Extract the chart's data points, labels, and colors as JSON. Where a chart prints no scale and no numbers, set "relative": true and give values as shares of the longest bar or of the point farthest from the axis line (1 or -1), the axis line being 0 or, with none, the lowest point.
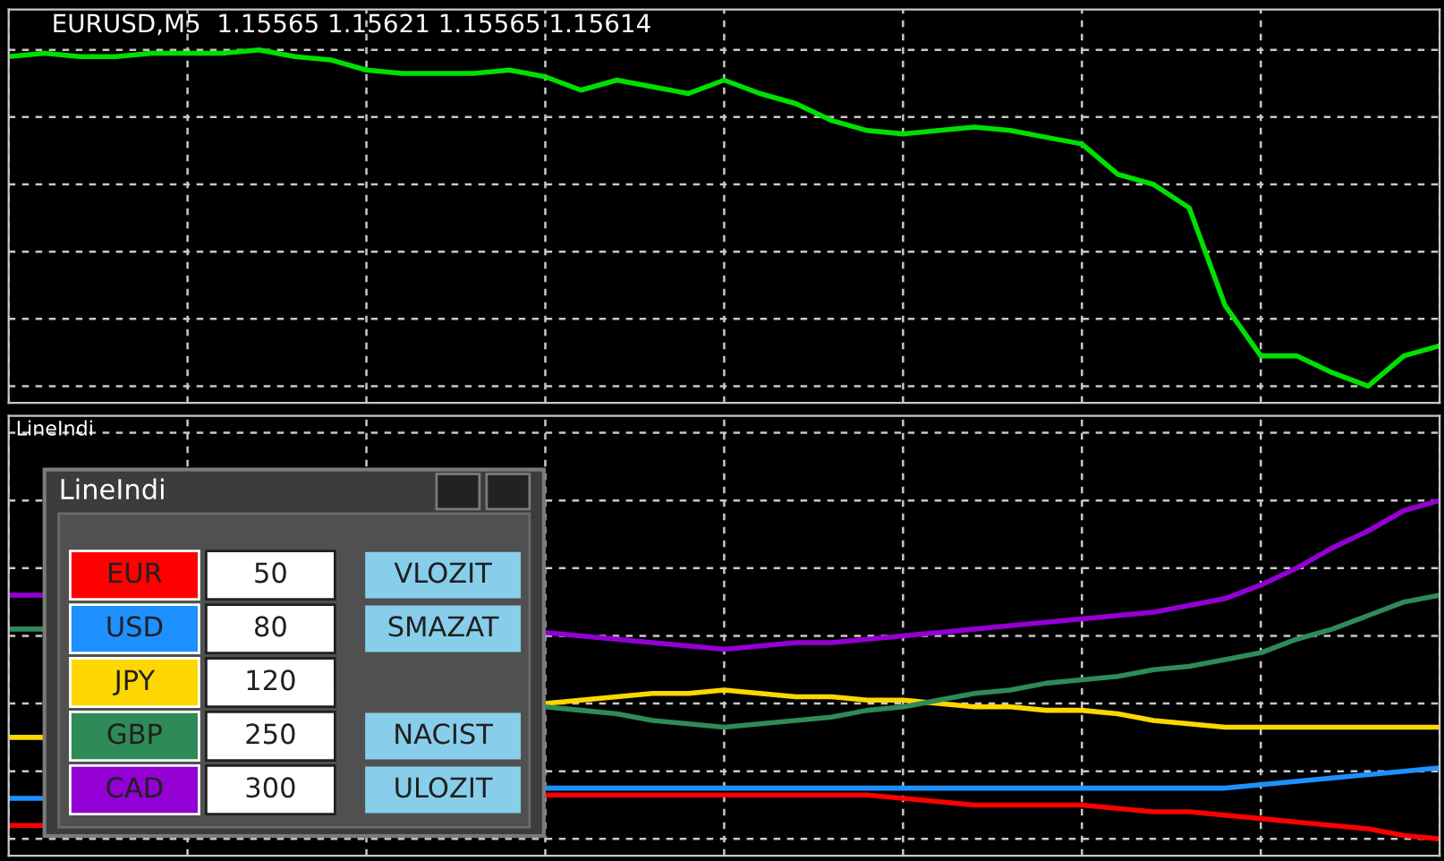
{
  "chart_data": [
    {
      "type": "line",
      "title": "EURUSD,M5  1.15565 1.15621 1.15565 1.15614",
      "relative": true,
      "grid": true,
      "tick_labels": false,
      "categories": [
        null,
        null,
        null,
        null,
        null,
        null,
        null,
        null,
        null,
        null,
        null,
        null,
        null,
        null,
        null,
        null,
        null,
        null,
        null,
        null,
        null,
        null,
        null,
        null,
        null,
        null,
        null,
        null,
        null,
        null,
        null,
        null,
        null,
        null,
        null,
        null,
        null,
        null,
        null,
        null,
        null
      ],
      "series": [
        {
          "color": "#00e000",
          "values": [
            0.98,
            0.99,
            0.98,
            0.98,
            0.99,
            0.99,
            0.99,
            1,
            0.98,
            0.97,
            0.94,
            0.93,
            0.93,
            0.93,
            0.94,
            0.92,
            0.88,
            0.91,
            0.89,
            0.87,
            0.91,
            0.87,
            0.84,
            0.79,
            0.76,
            0.75,
            0.76,
            0.77,
            0.76,
            0.74,
            0.72,
            0.63,
            0.6,
            0.53,
            0.24,
            0.09,
            0.09,
            0.04,
            0,
            0.09,
            0.12
          ]
        }
      ]
    },
    {
      "type": "line",
      "title": "LineIndi",
      "legend_title": "LineIndi",
      "legend": "left",
      "relative": true,
      "grid": true,
      "tick_labels": false,
      "categories": [
        null,
        null,
        null,
        null,
        null,
        null,
        null,
        null,
        null,
        null,
        null,
        null,
        null,
        null,
        null,
        null,
        null,
        null,
        null,
        null,
        null,
        null,
        null,
        null,
        null,
        null,
        null,
        null,
        null,
        null,
        null,
        null,
        null,
        null,
        null,
        null,
        null,
        null,
        null,
        null,
        null
      ],
      "series": [
        {
          "name": "EUR",
          "color": "#ff0000",
          "values": [
            0.04,
            0.04,
            null,
            null,
            null,
            null,
            null,
            null,
            null,
            null,
            null,
            null,
            null,
            null,
            null,
            0.13,
            0.13,
            0.13,
            0.13,
            0.13,
            0.13,
            0.13,
            0.13,
            0.13,
            0.13,
            0.12,
            0.11,
            0.1,
            0.1,
            0.1,
            0.1,
            0.09,
            0.08,
            0.08,
            0.07,
            0.06,
            0.05,
            0.04,
            0.03,
            0.01,
            0
          ]
        },
        {
          "name": "USD",
          "color": "#1e90ff",
          "values": [
            0.12,
            0.12,
            null,
            null,
            null,
            null,
            null,
            null,
            null,
            null,
            null,
            null,
            null,
            null,
            null,
            0.15,
            0.15,
            0.15,
            0.15,
            0.15,
            0.15,
            0.15,
            0.15,
            0.15,
            0.15,
            0.15,
            0.15,
            0.15,
            0.15,
            0.15,
            0.15,
            0.15,
            0.15,
            0.15,
            0.15,
            0.16,
            0.17,
            0.18,
            0.19,
            0.2,
            0.21
          ]
        },
        {
          "name": "JPY",
          "color": "#ffd700",
          "values": [
            0.3,
            0.3,
            null,
            null,
            null,
            null,
            null,
            null,
            null,
            null,
            null,
            null,
            null,
            null,
            null,
            0.4,
            0.41,
            0.42,
            0.43,
            0.43,
            0.44,
            0.43,
            0.42,
            0.42,
            0.41,
            0.41,
            0.4,
            0.39,
            0.39,
            0.38,
            0.38,
            0.37,
            0.35,
            0.34,
            0.33,
            0.33,
            0.33,
            0.33,
            0.33,
            0.33,
            0.33
          ]
        },
        {
          "name": "GBP",
          "color": "#2e8b57",
          "values": [
            0.62,
            0.62,
            null,
            null,
            null,
            null,
            null,
            null,
            null,
            null,
            null,
            null,
            null,
            null,
            null,
            0.39,
            0.38,
            0.37,
            0.35,
            0.34,
            0.33,
            0.34,
            0.35,
            0.36,
            0.38,
            0.39,
            0.41,
            0.43,
            0.44,
            0.46,
            0.47,
            0.48,
            0.5,
            0.51,
            0.53,
            0.55,
            0.59,
            0.62,
            0.66,
            0.7,
            0.72
          ]
        },
        {
          "name": "CAD",
          "color": "#9400d3",
          "values": [
            0.72,
            0.72,
            null,
            null,
            null,
            null,
            null,
            null,
            null,
            null,
            null,
            null,
            null,
            null,
            null,
            0.61,
            0.6,
            0.59,
            0.58,
            0.57,
            0.56,
            0.57,
            0.58,
            0.58,
            0.59,
            0.6,
            0.61,
            0.62,
            0.63,
            0.64,
            0.65,
            0.66,
            0.67,
            0.69,
            0.71,
            0.75,
            0.8,
            0.86,
            0.91,
            0.97,
            1
          ]
        }
      ],
      "annotations": [
        "50",
        "80",
        "120",
        "250",
        "300",
        "VLOZIT",
        "SMAZAT",
        "NACIST",
        "ULOZIT"
      ]
    }
  ]
}
